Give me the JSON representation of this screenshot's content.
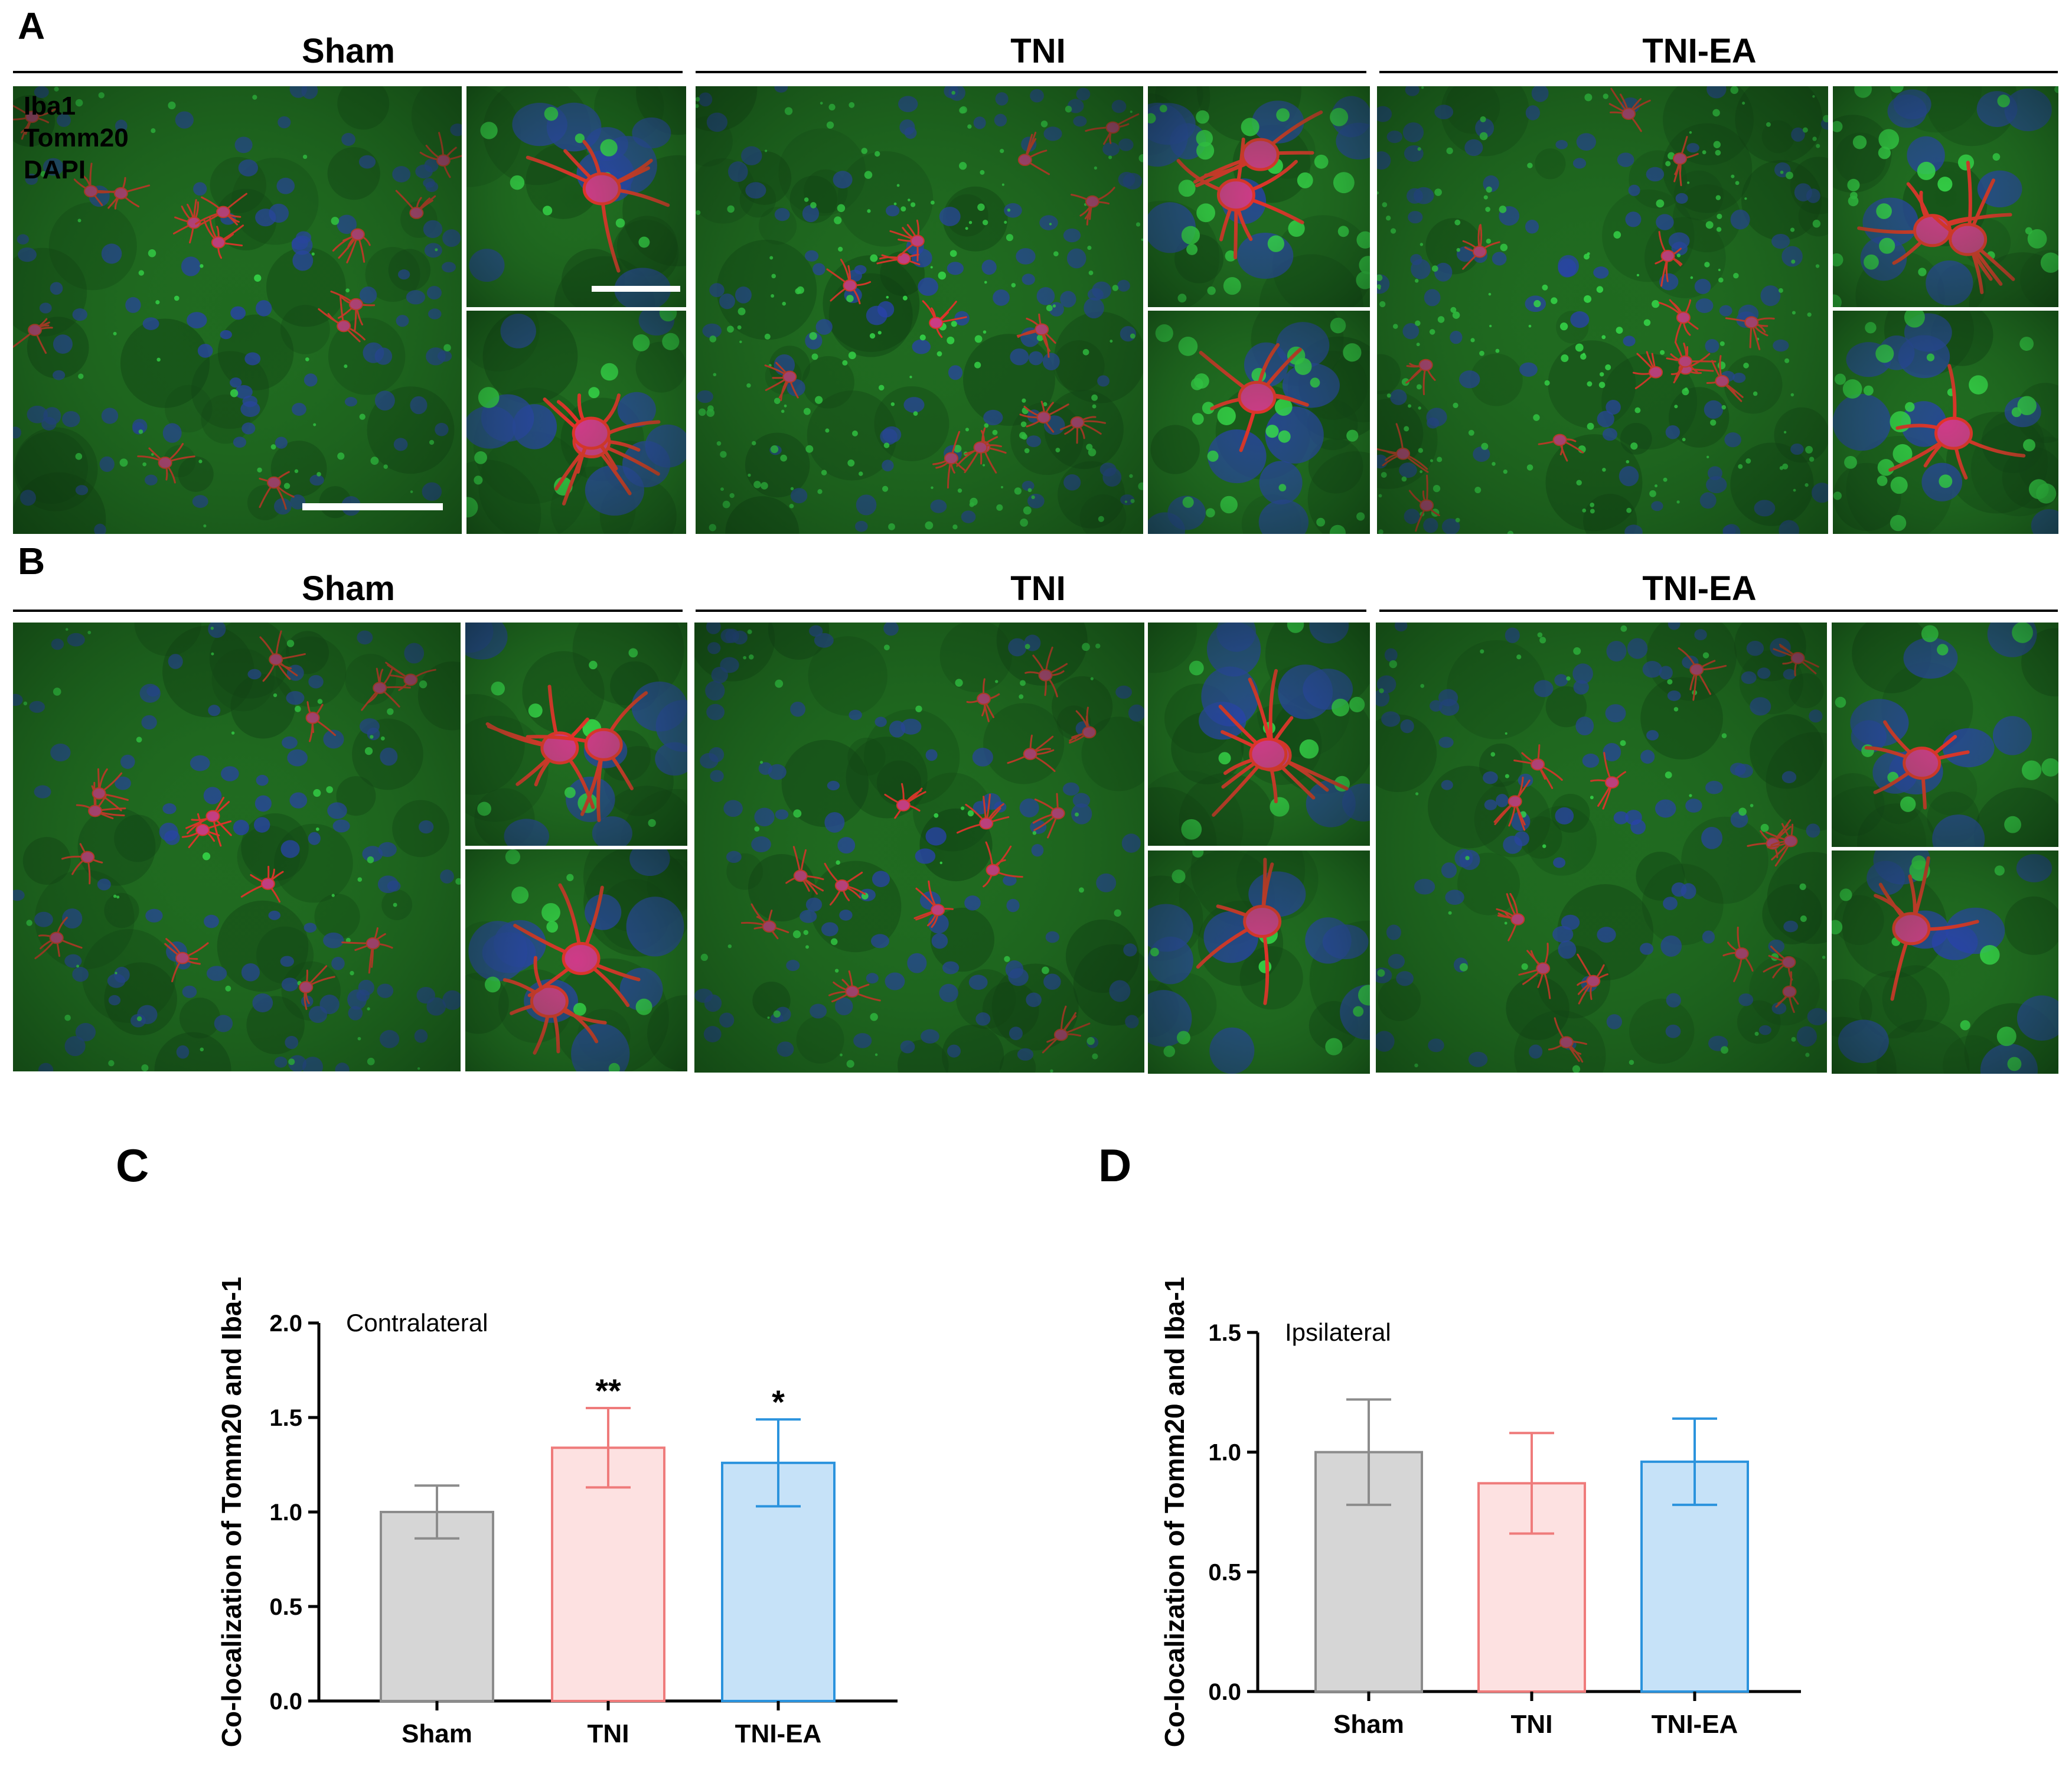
{
  "panels": {
    "A": {
      "letter": "A",
      "groups": [
        "Sham",
        "TNI",
        "TNI-EA"
      ],
      "channel_legend": [
        {
          "label": "Iba1",
          "color": "#e8231e"
        },
        {
          "label": "Tomm20",
          "color": "#1fbf3a"
        },
        {
          "label": "DAPI",
          "color": "#2b56d8"
        }
      ]
    },
    "B": {
      "letter": "B",
      "groups": [
        "Sham",
        "TNI",
        "TNI-EA"
      ]
    },
    "C": {
      "letter": "C"
    },
    "D": {
      "letter": "D"
    }
  },
  "colors": {
    "micro_bg": "#1f6a1f",
    "micro_dark": "#0f3d12",
    "nucleus": "#2a3fb4",
    "cell_red": "#e4312a",
    "cell_body": "#cf3a88",
    "green_puncta": "#37e04c",
    "sham_fill": "#d6d6d6",
    "sham_edge": "#8c8c8c",
    "tni_fill": "#fde1e1",
    "tni_edge": "#ef7b7b",
    "tniea_fill": "#c6e2f8",
    "tniea_edge": "#2b93dd"
  },
  "chart_data": [
    {
      "type": "bar",
      "panel": "C",
      "annotation": "Contralateral",
      "ylabel": "Co-localization of Tomm20 and Iba-1",
      "xlabel": "",
      "categories": [
        "Sham",
        "TNI",
        "TNI-EA"
      ],
      "values": [
        1.0,
        1.34,
        1.26
      ],
      "errors": [
        0.14,
        0.21,
        0.23
      ],
      "significance": [
        "",
        "**",
        "*"
      ],
      "ylim": [
        0,
        2.0
      ],
      "yticks": [
        "0.0",
        "0.5",
        "1.0",
        "1.5",
        "2.0"
      ],
      "ytick_values": [
        0,
        0.5,
        1.0,
        1.5,
        2.0
      ]
    },
    {
      "type": "bar",
      "panel": "D",
      "annotation": "Ipsilateral",
      "ylabel": "Co-localization of Tomm20 and Iba-1",
      "xlabel": "",
      "categories": [
        "Sham",
        "TNI",
        "TNI-EA"
      ],
      "values": [
        1.0,
        0.87,
        0.96
      ],
      "errors": [
        0.22,
        0.21,
        0.18
      ],
      "significance": [
        "",
        "",
        ""
      ],
      "ylim": [
        0,
        1.5
      ],
      "yticks": [
        "0.0",
        "0.5",
        "1.0",
        "1.5"
      ],
      "ytick_values": [
        0,
        0.5,
        1.0,
        1.5
      ]
    }
  ]
}
